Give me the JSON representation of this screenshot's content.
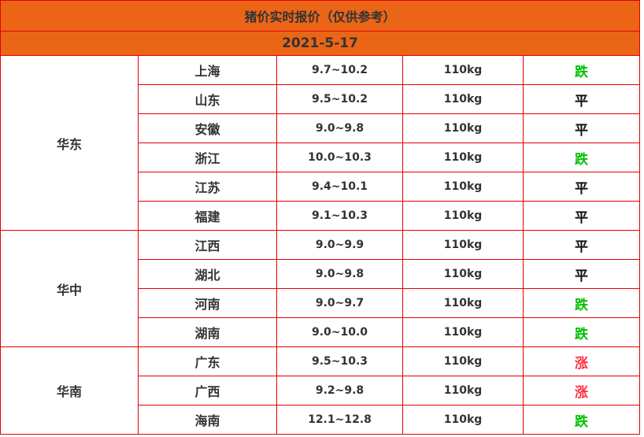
{
  "title": "猪价实时报价（仅供参考）",
  "date": "2021-5-17",
  "colors": {
    "header_bg": "#eb6517",
    "border": "#e60000",
    "down": "#00c000",
    "up": "#ff3040",
    "flat": "#111111"
  },
  "regions": [
    {
      "name": "华东",
      "rows": [
        {
          "province": "上海",
          "price": "9.7~10.2",
          "weight": "110kg",
          "trend": "跌"
        },
        {
          "province": "山东",
          "price": "9.5~10.2",
          "weight": "110kg",
          "trend": "平"
        },
        {
          "province": "安徽",
          "price": "9.0~9.8",
          "weight": "110kg",
          "trend": "平"
        },
        {
          "province": "浙江",
          "price": "10.0~10.3",
          "weight": "110kg",
          "trend": "跌"
        },
        {
          "province": "江苏",
          "price": "9.4~10.1",
          "weight": "110kg",
          "trend": "平"
        },
        {
          "province": "福建",
          "price": "9.1~10.3",
          "weight": "110kg",
          "trend": "平"
        }
      ]
    },
    {
      "name": "华中",
      "rows": [
        {
          "province": "江西",
          "price": "9.0~9.9",
          "weight": "110kg",
          "trend": "平"
        },
        {
          "province": "湖北",
          "price": "9.0~9.8",
          "weight": "110kg",
          "trend": "平"
        },
        {
          "province": "河南",
          "price": "9.0~9.7",
          "weight": "110kg",
          "trend": "跌"
        },
        {
          "province": "湖南",
          "price": "9.0~10.0",
          "weight": "110kg",
          "trend": "跌"
        }
      ]
    },
    {
      "name": "华南",
      "rows": [
        {
          "province": "广东",
          "price": "9.5~10.3",
          "weight": "110kg",
          "trend": "涨"
        },
        {
          "province": "广西",
          "price": "9.2~9.8",
          "weight": "110kg",
          "trend": "涨"
        },
        {
          "province": "海南",
          "price": "12.1~12.8",
          "weight": "110kg",
          "trend": "跌"
        }
      ]
    }
  ]
}
